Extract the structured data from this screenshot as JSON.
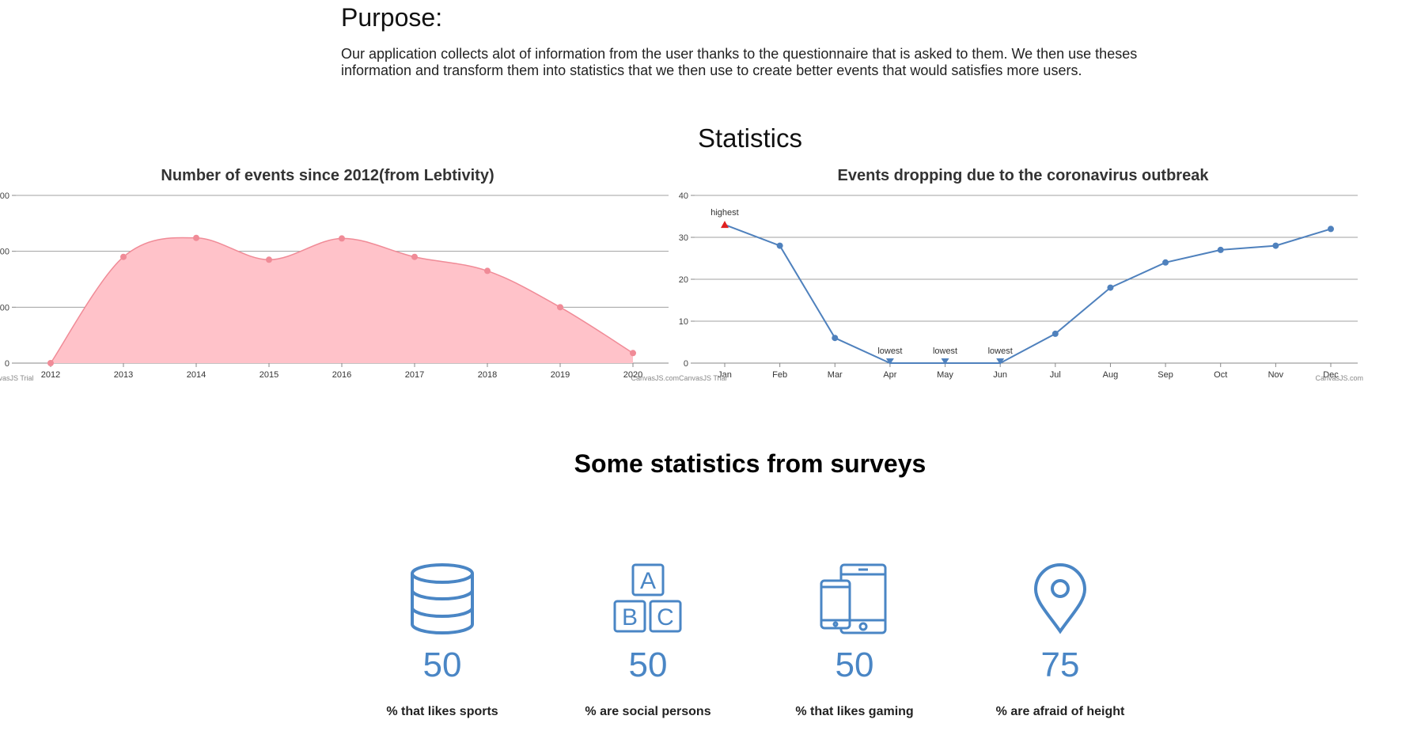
{
  "purpose": {
    "title": "Purpose:",
    "text": "Our application collects alot of information from the user thanks to the questionnaire that is asked to them. We then use theses information and transform them into statistics that we then use to create better events that would satisfies more users."
  },
  "statistics_title": "Statistics",
  "colors": {
    "area_fill": "#ffc2c9",
    "area_line": "#f08b97",
    "line_series": "#4f81bd",
    "accent_blue": "#4a86c5",
    "marker_red": "#e02020"
  },
  "chart_data": [
    {
      "type": "area",
      "title": "Number of events since 2012(from Lebtivity)",
      "x": [
        "2012",
        "2013",
        "2014",
        "2015",
        "2016",
        "2017",
        "2018",
        "2019",
        "2020"
      ],
      "values": [
        0,
        190,
        224,
        185,
        223,
        190,
        165,
        100,
        18
      ],
      "y_tick_labels": [
        "0",
        "00",
        "00",
        "00"
      ],
      "y_tick_values": [
        0,
        100,
        200,
        300
      ],
      "ylim": [
        0,
        300
      ],
      "grid": true,
      "credit_left": "CanvasJS Trial",
      "credit_right": "CanvasJS.com"
    },
    {
      "type": "line",
      "title": "Events dropping due to the coronavirus outbreak",
      "x": [
        "Jan",
        "Feb",
        "Mar",
        "Apr",
        "May",
        "Jun",
        "Jul",
        "Aug",
        "Sep",
        "Oct",
        "Nov",
        "Dec"
      ],
      "values": [
        33,
        28,
        6,
        0,
        0,
        0,
        7,
        18,
        24,
        27,
        28,
        32
      ],
      "y_tick_labels": [
        "0",
        "10",
        "20",
        "30",
        "40"
      ],
      "y_tick_values": [
        0,
        10,
        20,
        30,
        40
      ],
      "ylim": [
        0,
        40
      ],
      "grid": true,
      "annotations": [
        {
          "index": 0,
          "text": "highest"
        },
        {
          "index": 3,
          "text": "lowest"
        },
        {
          "index": 4,
          "text": "lowest"
        },
        {
          "index": 5,
          "text": "lowest"
        }
      ],
      "credit_left": "CanvasJS Trial",
      "credit_right": "CanvasJS.com"
    }
  ],
  "surveys": {
    "title": "Some statistics from surveys",
    "items": [
      {
        "icon": "database-icon",
        "value": "50",
        "label": "% that likes sports"
      },
      {
        "icon": "abc-blocks-icon",
        "value": "50",
        "label": "% are social persons"
      },
      {
        "icon": "devices-icon",
        "value": "50",
        "label": "% that likes gaming"
      },
      {
        "icon": "location-pin-icon",
        "value": "75",
        "label": "% are afraid of height"
      }
    ]
  }
}
